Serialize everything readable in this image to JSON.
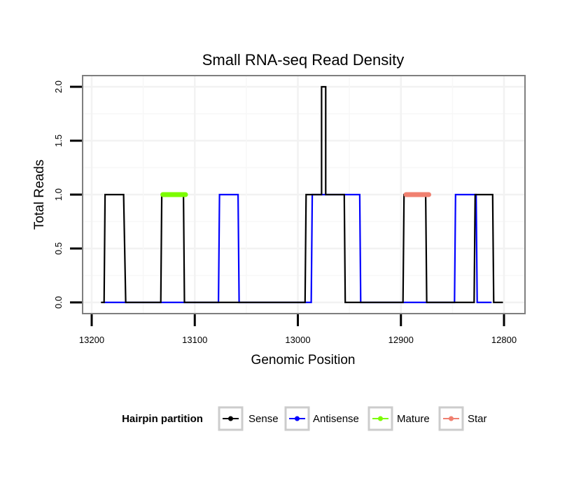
{
  "chart_data": {
    "type": "line",
    "title": "Small RNA-seq Read Density",
    "xlabel": "Genomic Position",
    "ylabel": "Total Reads",
    "xlim": [
      13200,
      12800
    ],
    "x_reversed": true,
    "ylim": [
      0,
      2.0
    ],
    "x_ticks": [
      13200,
      13100,
      13000,
      12900,
      12800
    ],
    "y_ticks": [
      0.0,
      0.5,
      1.0,
      1.5,
      2.0
    ],
    "x_tick_labels": [
      "13200",
      "13100",
      "13000",
      "12900",
      "12800"
    ],
    "y_tick_labels": [
      "0.0",
      "0.5",
      "1.0",
      "1.5",
      "2.0"
    ],
    "grid": true,
    "legend": {
      "title": "Hairpin partition",
      "placement": "bottom",
      "entries": [
        "Sense",
        "Antisense",
        "Mature",
        "Star"
      ]
    },
    "series": [
      {
        "name": "Sense",
        "color": "#000000",
        "kind": "line",
        "points": [
          [
            13191,
            0
          ],
          [
            13188,
            0
          ],
          [
            13187,
            1
          ],
          [
            13169,
            1
          ],
          [
            13167,
            0
          ],
          [
            13133,
            0
          ],
          [
            13132,
            1
          ],
          [
            13111,
            1
          ],
          [
            13110,
            0
          ],
          [
            13054,
            0
          ],
          [
            12993,
            0
          ],
          [
            12992,
            1
          ],
          [
            12977,
            1
          ],
          [
            12977,
            2
          ],
          [
            12973,
            2
          ],
          [
            12973,
            1
          ],
          [
            12955,
            1
          ],
          [
            12954,
            0
          ],
          [
            12898,
            0
          ],
          [
            12897,
            1
          ],
          [
            12876,
            1
          ],
          [
            12875,
            0
          ],
          [
            12829,
            0
          ],
          [
            12828,
            1
          ],
          [
            12811,
            1
          ],
          [
            12810,
            0
          ],
          [
            12801,
            0
          ]
        ]
      },
      {
        "name": "Antisense",
        "color": "#0000ff",
        "kind": "line",
        "points": [
          [
            13188,
            0
          ],
          [
            13155,
            0
          ],
          [
            13077,
            0
          ],
          [
            13076,
            1
          ],
          [
            13058,
            1
          ],
          [
            13057,
            0
          ],
          [
            12987,
            0
          ],
          [
            12986,
            1
          ],
          [
            12940,
            1
          ],
          [
            12939,
            0
          ],
          [
            12900,
            0
          ],
          [
            12848,
            0
          ],
          [
            12847,
            1
          ],
          [
            12827,
            1
          ],
          [
            12826,
            0
          ],
          [
            12812,
            0
          ]
        ]
      },
      {
        "name": "Mature",
        "color": "#7cfc00",
        "kind": "segment",
        "points": [
          [
            13131,
            1
          ],
          [
            13109,
            1
          ]
        ]
      },
      {
        "name": "Star",
        "color": "#f08070",
        "kind": "segment",
        "points": [
          [
            12895,
            1
          ],
          [
            12873,
            1
          ]
        ]
      }
    ]
  }
}
